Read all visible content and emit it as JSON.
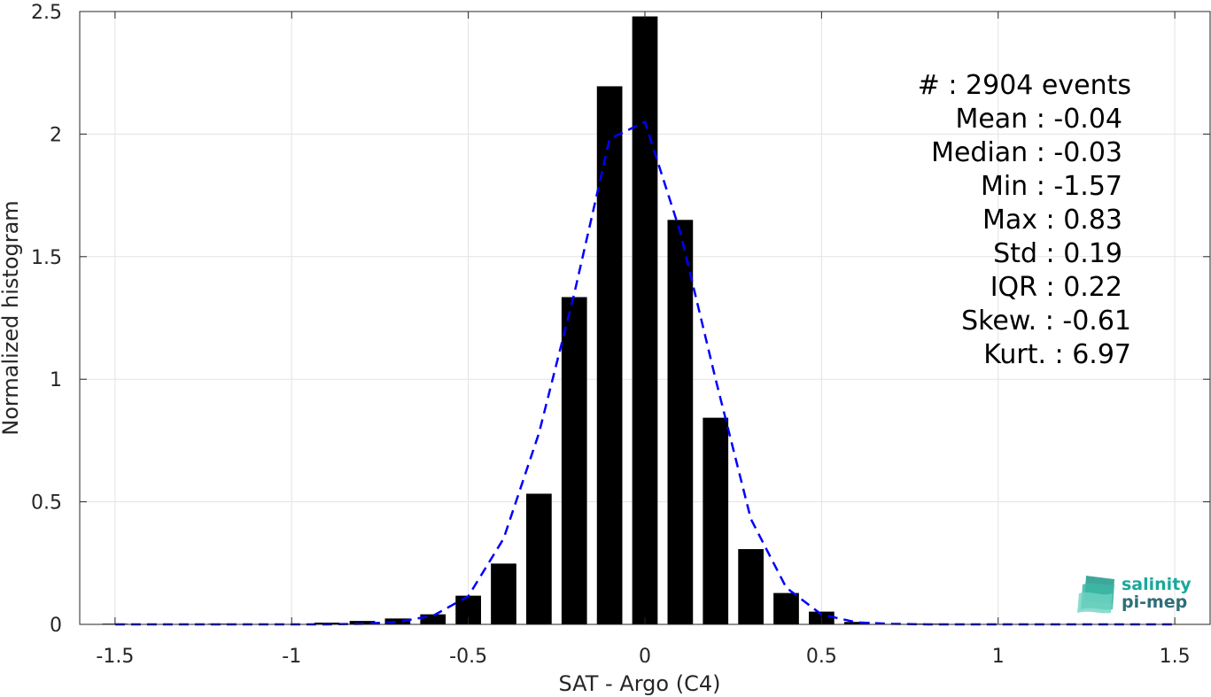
{
  "chart_data": {
    "type": "bar",
    "xlabel": "SAT - Argo (C4)",
    "ylabel": "Normalized histogram",
    "xlim": [
      -1.6,
      1.6
    ],
    "ylim": [
      0,
      2.5
    ],
    "grid": true,
    "xticks": [
      -1.5,
      -1,
      -0.5,
      0,
      0.5,
      1,
      1.5
    ],
    "xtick_labels": [
      "-1.5",
      "-1",
      "-0.5",
      "0",
      "0.5",
      "1",
      "1.5"
    ],
    "yticks": [
      0,
      0.5,
      1,
      1.5,
      2,
      2.5
    ],
    "ytick_labels": [
      "0",
      "0.5",
      "1",
      "1.5",
      "2",
      "2.5"
    ],
    "bar_color": "#000000",
    "fit_color": "#0000ff",
    "bin_width": 0.1,
    "bars": {
      "x": [
        -1.5,
        -1.4,
        -1.3,
        -1.2,
        -1.1,
        -1.0,
        -0.9,
        -0.8,
        -0.7,
        -0.6,
        -0.5,
        -0.4,
        -0.3,
        -0.2,
        -0.1,
        0.0,
        0.1,
        0.2,
        0.3,
        0.4,
        0.5,
        0.6,
        0.7,
        0.8
      ],
      "y": [
        0.003,
        0.0,
        0.0,
        0.003,
        0.0,
        0.0,
        0.007,
        0.014,
        0.024,
        0.041,
        0.117,
        0.248,
        0.533,
        1.335,
        2.195,
        2.48,
        1.65,
        0.843,
        0.307,
        0.128,
        0.052,
        0.01,
        0.0,
        0.003
      ]
    },
    "fit_curve": {
      "style": "dashed",
      "x": [
        -1.5,
        -1.4,
        -1.3,
        -1.2,
        -1.1,
        -1.0,
        -0.9,
        -0.8,
        -0.7,
        -0.6,
        -0.5,
        -0.4,
        -0.3,
        -0.2,
        -0.1,
        0.0,
        0.1,
        0.2,
        0.3,
        0.4,
        0.5,
        0.6,
        0.7,
        0.8,
        0.9,
        1.0,
        1.1,
        1.2,
        1.3,
        1.5
      ],
      "y": [
        0.0,
        0.0,
        0.0,
        0.0,
        0.0,
        0.0,
        0.0,
        0.002,
        0.01,
        0.035,
        0.115,
        0.35,
        0.78,
        1.35,
        1.98,
        2.05,
        1.6,
        1.0,
        0.43,
        0.15,
        0.04,
        0.008,
        0.002,
        0.0,
        0.0,
        0.0,
        0.0,
        0.0,
        0.0,
        0.0
      ]
    }
  },
  "stats": {
    "count": "#  : 2904 events",
    "mean": "Mean : -0.04",
    "median": "Median : -0.03",
    "min": "Min : -1.57",
    "max": "Max : 0.83",
    "std": "Std : 0.19",
    "iqr": "IQR : 0.22",
    "skew": "Skew. : -0.61",
    "kurt": "Kurt. : 6.97"
  },
  "logo": {
    "line1": "salinity",
    "line2": "pi-mep",
    "color1": "#1aa89a",
    "color2": "#2e6e78"
  }
}
